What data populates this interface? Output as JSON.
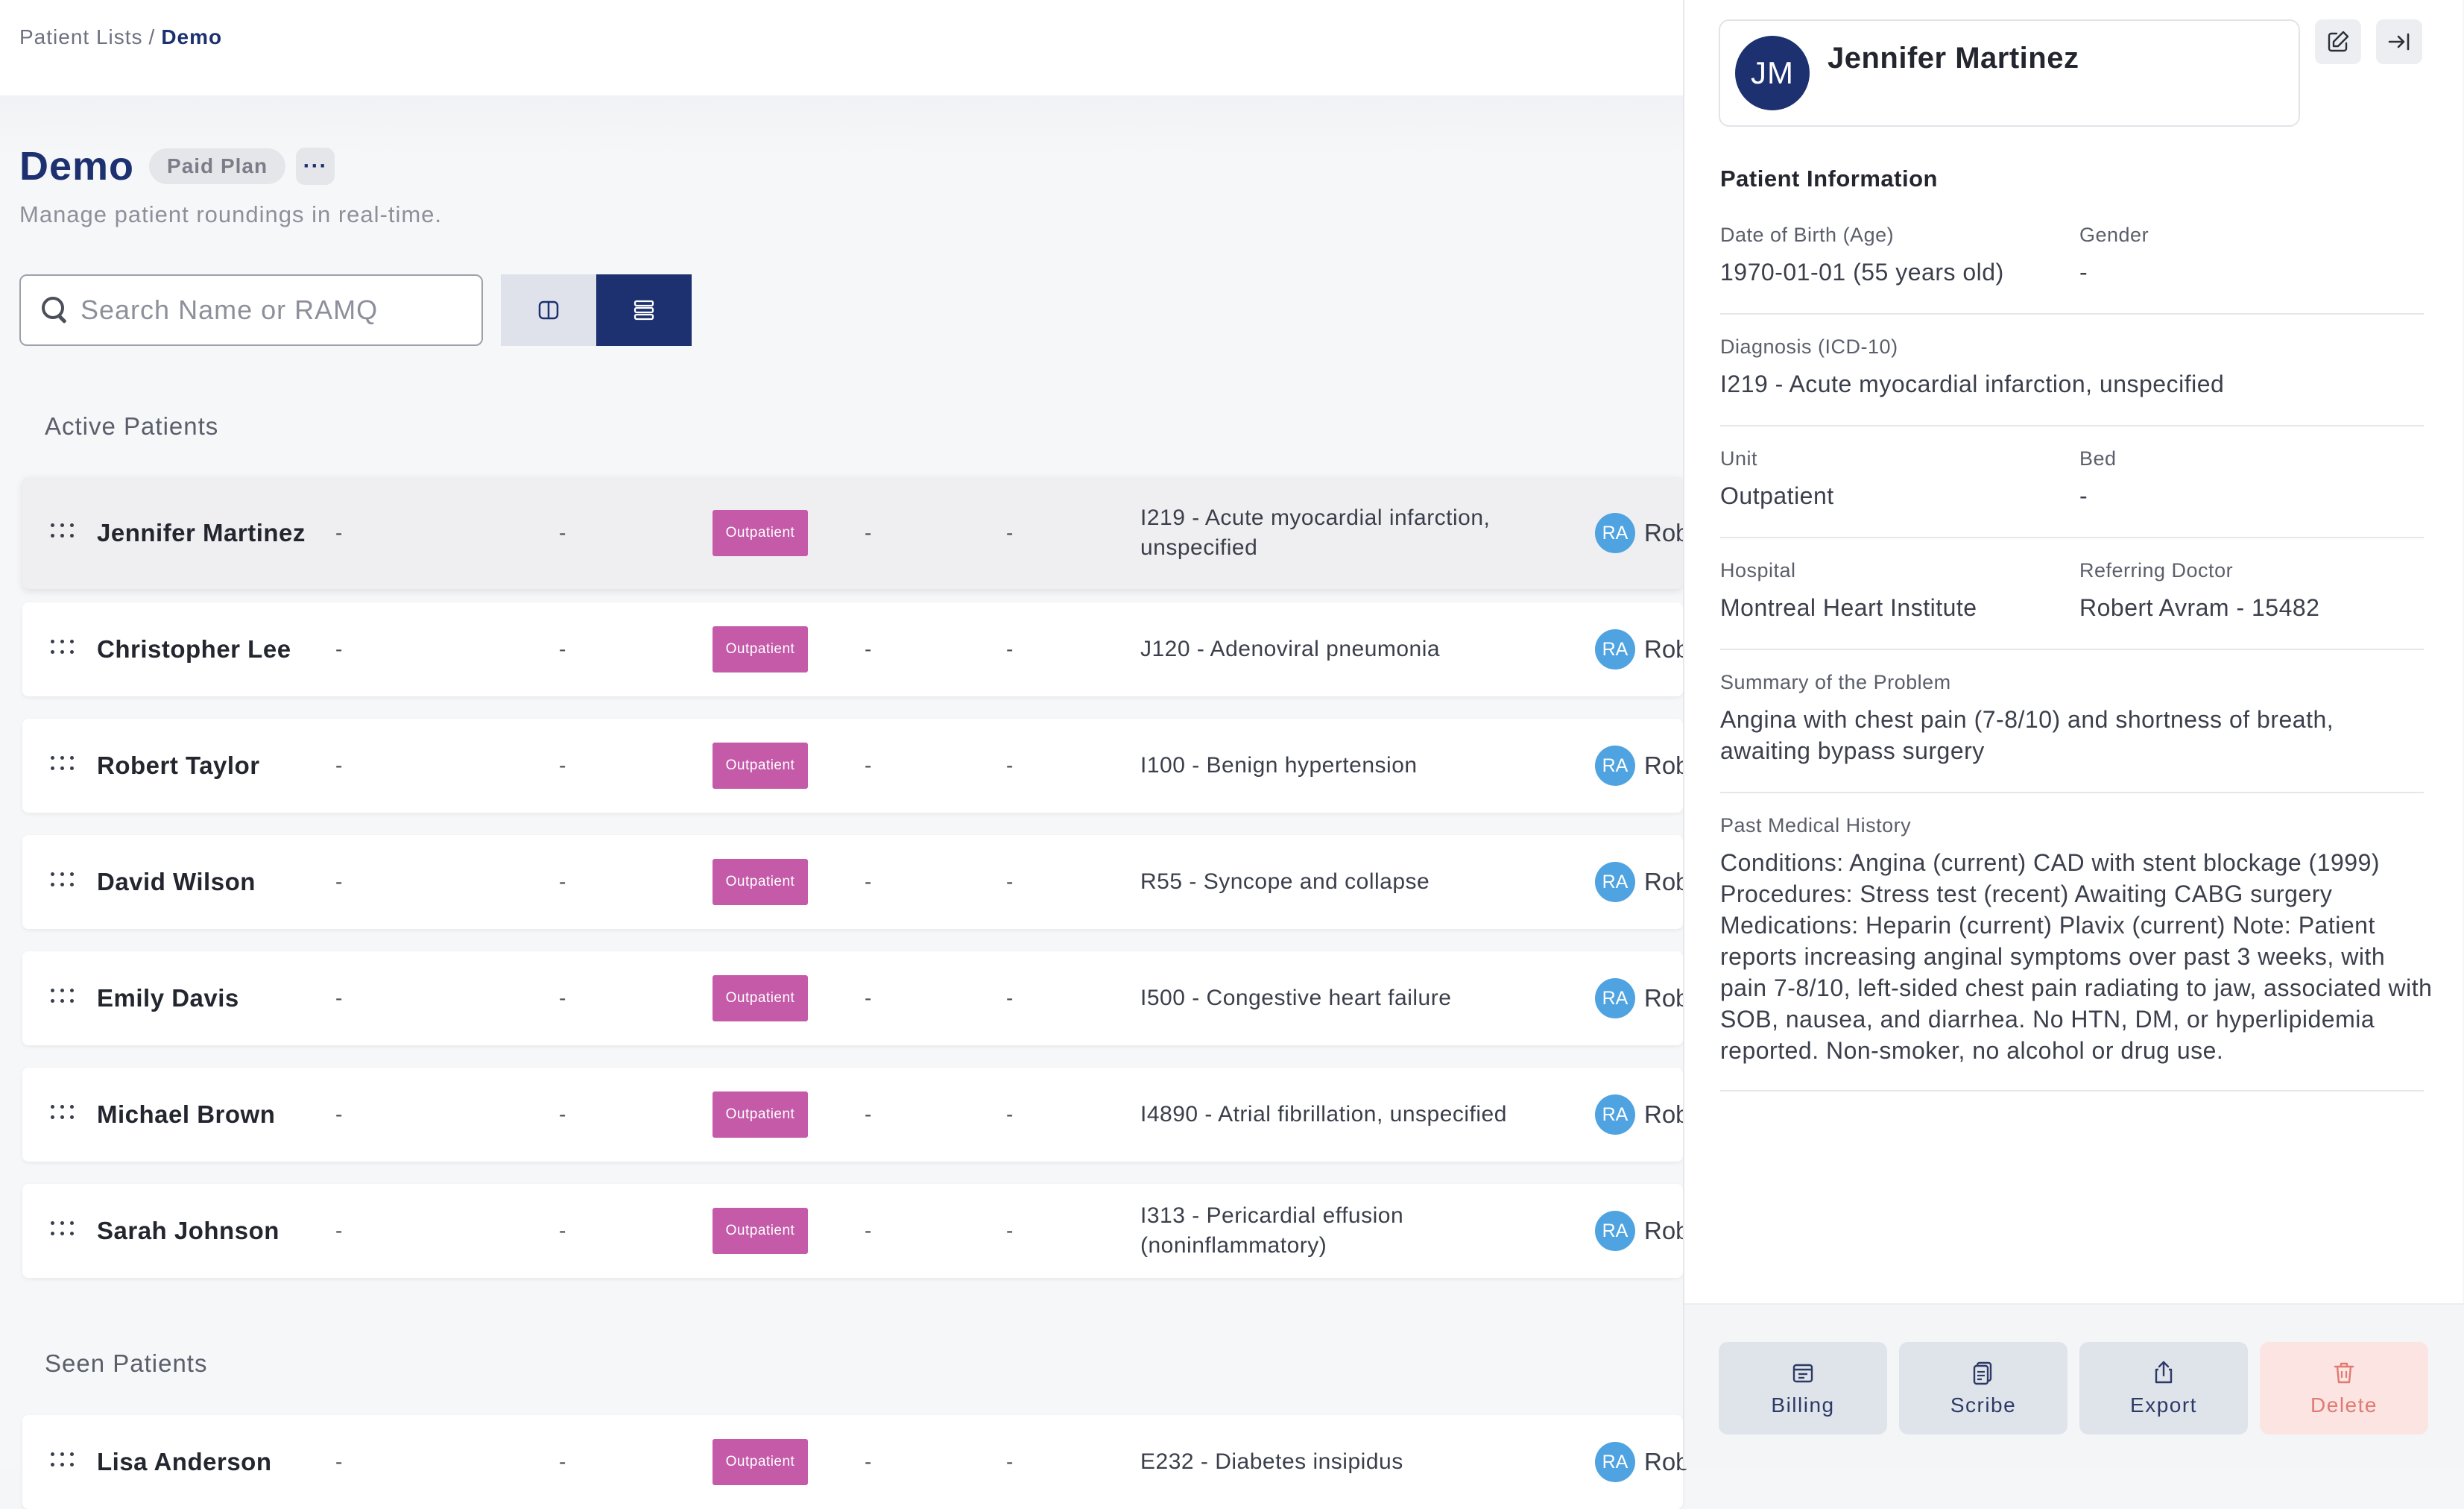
{
  "breadcrumb": {
    "root": "Patient Lists",
    "separator": "/",
    "current": "Demo"
  },
  "header": {
    "title": "Demo",
    "plan_badge": "Paid Plan",
    "more_label": "···",
    "subtitle": "Manage patient roundings in real-time."
  },
  "search": {
    "placeholder": "Search Name or RAMQ",
    "value": ""
  },
  "view_toggle": {
    "options": [
      "split-view-icon",
      "list-view-icon"
    ],
    "selected": "list-view-icon"
  },
  "sections": {
    "active": "Active Patients",
    "seen": "Seen Patients"
  },
  "placeholder_dash": "-",
  "active_patients": [
    {
      "name": "Jennifer Martinez",
      "c1": "-",
      "c2": "-",
      "unit": "Outpatient",
      "c3": "-",
      "c4": "-",
      "diagnosis": "I219 - Acute myocardial infarction, unspecified",
      "doctor_initials": "RA",
      "doctor": "Rob"
    },
    {
      "name": "Christopher Lee",
      "c1": "-",
      "c2": "-",
      "unit": "Outpatient",
      "c3": "-",
      "c4": "-",
      "diagnosis": "J120 - Adenoviral pneumonia",
      "doctor_initials": "RA",
      "doctor": "Rob"
    },
    {
      "name": "Robert Taylor",
      "c1": "-",
      "c2": "-",
      "unit": "Outpatient",
      "c3": "-",
      "c4": "-",
      "diagnosis": "I100 - Benign hypertension",
      "doctor_initials": "RA",
      "doctor": "Rob"
    },
    {
      "name": "David Wilson",
      "c1": "-",
      "c2": "-",
      "unit": "Outpatient",
      "c3": "-",
      "c4": "-",
      "diagnosis": "R55 - Syncope and collapse",
      "doctor_initials": "RA",
      "doctor": "Rob"
    },
    {
      "name": "Emily Davis",
      "c1": "-",
      "c2": "-",
      "unit": "Outpatient",
      "c3": "-",
      "c4": "-",
      "diagnosis": "I500 - Congestive heart failure",
      "doctor_initials": "RA",
      "doctor": "Rob"
    },
    {
      "name": "Michael Brown",
      "c1": "-",
      "c2": "-",
      "unit": "Outpatient",
      "c3": "-",
      "c4": "-",
      "diagnosis": "I4890 - Atrial fibrillation, unspecified",
      "doctor_initials": "RA",
      "doctor": "Rob"
    },
    {
      "name": "Sarah Johnson",
      "c1": "-",
      "c2": "-",
      "unit": "Outpatient",
      "c3": "-",
      "c4": "-",
      "diagnosis": "I313 - Pericardial effusion (noninflammatory)",
      "doctor_initials": "RA",
      "doctor": "Rob"
    }
  ],
  "seen_patients": [
    {
      "name": "Lisa Anderson",
      "c1": "-",
      "c2": "-",
      "unit": "Outpatient",
      "c3": "-",
      "c4": "-",
      "diagnosis": "E232 - Diabetes insipidus",
      "doctor_initials": "RA",
      "doctor": "Rob"
    }
  ],
  "panel": {
    "initials": "JM",
    "name": "Jennifer Martinez",
    "section_title": "Patient Information",
    "dob_label": "Date of Birth (Age)",
    "dob_value": "1970-01-01 (55 years old)",
    "gender_label": "Gender",
    "gender_value": "-",
    "diagnosis_label": "Diagnosis (ICD-10)",
    "diagnosis_value": "I219 - Acute myocardial infarction, unspecified",
    "unit_label": "Unit",
    "unit_value": "Outpatient",
    "bed_label": "Bed",
    "bed_value": "-",
    "hospital_label": "Hospital",
    "hospital_value": "Montreal Heart Institute",
    "referring_label": "Referring Doctor",
    "referring_value": "Robert Avram - 15482",
    "summary_label": "Summary of the Problem",
    "summary_value": "Angina with chest pain (7-8/10) and shortness of breath, awaiting bypass surgery",
    "history_label": "Past Medical History",
    "history_value": "Conditions: Angina (current) CAD with stent blockage (1999) Procedures: Stress test (recent) Awaiting CABG surgery Medications: Heparin (current) Plavix (current) Note: Patient reports increasing anginal symptoms over past 3 weeks, with pain 7-8/10, left-sided chest pain radiating to jaw, associated with SOB, nausea, and diarrhea. No HTN, DM, or hyperlipidemia reported. Non-smoker, no alcohol or drug use."
  },
  "actions": {
    "billing": "Billing",
    "scribe": "Scribe",
    "export": "Export",
    "delete": "Delete"
  },
  "colors": {
    "primary": "#1d3170",
    "unit_badge": "#c45aa8",
    "avatar": "#4fa3e0",
    "danger": "#e07b72"
  }
}
